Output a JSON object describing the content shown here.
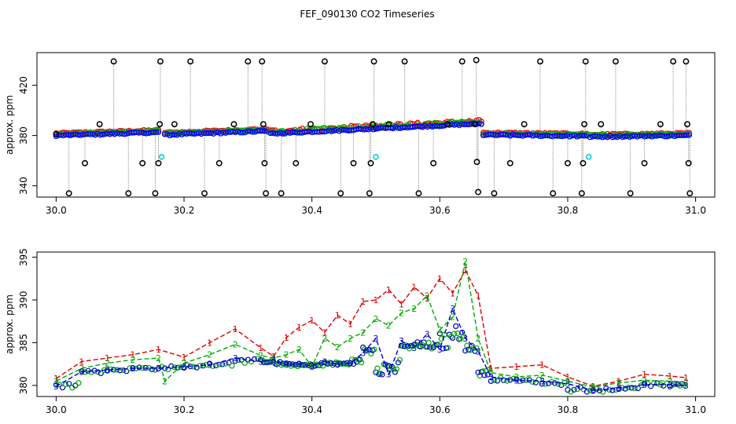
{
  "figure": {
    "title": "FEF_090130  CO2 Timeseries"
  },
  "chart_data": [
    {
      "type": "scatter",
      "panel": "top",
      "ylabel": "approx. ppm",
      "xlabel": "",
      "xlim": [
        29.97,
        31.03
      ],
      "ylim": [
        331,
        446
      ],
      "xticks": [
        30.0,
        30.2,
        30.4,
        30.6,
        30.8,
        31.0
      ],
      "xtick_labels": [
        "30.0",
        "30.2",
        "30.4",
        "30.6",
        "30.8",
        "31.0"
      ],
      "yticks": [
        340,
        380,
        420
      ],
      "ytick_labels": [
        "340",
        "380",
        "420"
      ],
      "colors": {
        "s1": "#ff0000",
        "s2": "#00bb00",
        "s3": "#0000ff",
        "outlier": "#000000",
        "special": "#00cccc",
        "connector": "#aaaaaa"
      },
      "segments": [
        {
          "x0": 30.0,
          "x1": 30.16,
          "y0": 380.5,
          "y1": 383
        },
        {
          "x0": 30.17,
          "x1": 30.33,
          "y0": 381,
          "y1": 384
        },
        {
          "x0": 30.335,
          "x1": 30.5,
          "y0": 382,
          "y1": 386
        },
        {
          "x0": 30.5,
          "x1": 30.665,
          "y0": 386,
          "y1": 390
        },
        {
          "x0": 30.668,
          "x1": 30.83,
          "y0": 381,
          "y1": 380
        },
        {
          "x0": 30.835,
          "x1": 30.99,
          "y0": 379.5,
          "y1": 380.5
        }
      ],
      "outliers": [
        {
          "x": 30.0,
          "y": 381
        },
        {
          "x": 30.02,
          "y": 334
        },
        {
          "x": 30.045,
          "y": 358
        },
        {
          "x": 30.068,
          "y": 389
        },
        {
          "x": 30.09,
          "y": 439
        },
        {
          "x": 30.113,
          "y": 334
        },
        {
          "x": 30.135,
          "y": 358
        },
        {
          "x": 30.155,
          "y": 334
        },
        {
          "x": 30.16,
          "y": 358
        },
        {
          "x": 30.162,
          "y": 389
        },
        {
          "x": 30.163,
          "y": 439
        },
        {
          "x": 30.185,
          "y": 389
        },
        {
          "x": 30.21,
          "y": 439
        },
        {
          "x": 30.232,
          "y": 334
        },
        {
          "x": 30.255,
          "y": 358
        },
        {
          "x": 30.278,
          "y": 389
        },
        {
          "x": 30.3,
          "y": 439
        },
        {
          "x": 30.322,
          "y": 439
        },
        {
          "x": 30.324,
          "y": 389
        },
        {
          "x": 30.326,
          "y": 358
        },
        {
          "x": 30.328,
          "y": 334
        },
        {
          "x": 30.352,
          "y": 334
        },
        {
          "x": 30.375,
          "y": 358
        },
        {
          "x": 30.398,
          "y": 389
        },
        {
          "x": 30.42,
          "y": 439
        },
        {
          "x": 30.445,
          "y": 334
        },
        {
          "x": 30.465,
          "y": 358
        },
        {
          "x": 30.49,
          "y": 334
        },
        {
          "x": 30.492,
          "y": 358
        },
        {
          "x": 30.495,
          "y": 389
        },
        {
          "x": 30.497,
          "y": 439
        },
        {
          "x": 30.52,
          "y": 389
        },
        {
          "x": 30.545,
          "y": 439
        },
        {
          "x": 30.567,
          "y": 334
        },
        {
          "x": 30.59,
          "y": 358
        },
        {
          "x": 30.612,
          "y": 389
        },
        {
          "x": 30.635,
          "y": 439
        },
        {
          "x": 30.655,
          "y": 389
        },
        {
          "x": 30.657,
          "y": 440
        },
        {
          "x": 30.658,
          "y": 359
        },
        {
          "x": 30.66,
          "y": 335
        },
        {
          "x": 30.685,
          "y": 334
        },
        {
          "x": 30.71,
          "y": 358
        },
        {
          "x": 30.732,
          "y": 389
        },
        {
          "x": 30.757,
          "y": 439
        },
        {
          "x": 30.777,
          "y": 334
        },
        {
          "x": 30.8,
          "y": 358
        },
        {
          "x": 30.822,
          "y": 334
        },
        {
          "x": 30.824,
          "y": 358
        },
        {
          "x": 30.826,
          "y": 389
        },
        {
          "x": 30.828,
          "y": 439
        },
        {
          "x": 30.852,
          "y": 389
        },
        {
          "x": 30.875,
          "y": 439
        },
        {
          "x": 30.898,
          "y": 334
        },
        {
          "x": 30.92,
          "y": 358
        },
        {
          "x": 30.945,
          "y": 389
        },
        {
          "x": 30.965,
          "y": 439
        },
        {
          "x": 30.985,
          "y": 439
        },
        {
          "x": 30.987,
          "y": 389
        },
        {
          "x": 30.989,
          "y": 358
        },
        {
          "x": 30.991,
          "y": 334
        }
      ],
      "special_points": [
        {
          "x": 30.165,
          "y": 363
        },
        {
          "x": 30.5,
          "y": 363
        },
        {
          "x": 30.833,
          "y": 363
        }
      ]
    },
    {
      "type": "line",
      "panel": "bottom",
      "ylabel": "approx. ppm",
      "xlabel": "",
      "xlim": [
        29.97,
        31.03
      ],
      "ylim": [
        378.7,
        395.6
      ],
      "xticks": [
        30.0,
        30.2,
        30.4,
        30.6,
        30.8,
        31.0
      ],
      "xtick_labels": [
        "30.0",
        "30.2",
        "30.4",
        "30.6",
        "30.8",
        "31.0"
      ],
      "yticks": [
        380,
        385,
        390,
        395
      ],
      "ytick_labels": [
        "380",
        "385",
        "390",
        "395"
      ],
      "series": [
        {
          "name": "1",
          "marker": "1",
          "color": "#dd0000",
          "x": [
            30.0,
            30.04,
            30.08,
            30.12,
            30.16,
            30.2,
            30.24,
            30.28,
            30.32,
            30.34,
            30.36,
            30.38,
            30.4,
            30.42,
            30.44,
            30.46,
            30.48,
            30.5,
            30.52,
            30.54,
            30.56,
            30.58,
            30.6,
            30.62,
            30.64,
            30.66,
            30.68,
            30.72,
            30.76,
            30.8,
            30.84,
            30.88,
            30.92,
            30.96,
            30.985
          ],
          "y": [
            380.8,
            382.8,
            383.2,
            383.6,
            384.2,
            383.3,
            385,
            386.6,
            384.4,
            383.4,
            385.6,
            386.8,
            387.6,
            386.2,
            388.2,
            387.2,
            389.8,
            390,
            391.2,
            389.5,
            391.5,
            390.2,
            392.5,
            390.8,
            393.5,
            390.5,
            382,
            382.2,
            382.4,
            381,
            379.9,
            380.5,
            381.3,
            381.1,
            380.9
          ]
        },
        {
          "name": "2",
          "marker": "2",
          "color": "#00aa00",
          "x": [
            30.0,
            30.04,
            30.08,
            30.12,
            30.16,
            30.17,
            30.2,
            30.24,
            30.28,
            30.32,
            30.34,
            30.36,
            30.38,
            30.4,
            30.42,
            30.44,
            30.46,
            30.48,
            30.5,
            30.52,
            30.54,
            30.56,
            30.58,
            30.6,
            30.62,
            30.64,
            30.66,
            30.68,
            30.72,
            30.76,
            30.8,
            30.84,
            30.88,
            30.92,
            30.96,
            30.985
          ],
          "y": [
            380.5,
            382,
            382.6,
            383,
            383.2,
            380.5,
            382.6,
            383.6,
            384.8,
            383.5,
            383.2,
            383.6,
            384.2,
            382.2,
            385.5,
            384.5,
            385.5,
            386.2,
            387.8,
            387,
            388.5,
            389,
            390.5,
            386.5,
            388,
            394.5,
            385.5,
            381.5,
            381,
            381.2,
            380.5,
            379.8,
            380.3,
            380.6,
            380.5,
            380.4
          ]
        },
        {
          "name": "3",
          "marker": "3",
          "color": "#0000cc",
          "x": [
            30.0,
            30.04,
            30.08,
            30.12,
            30.16,
            30.2,
            30.24,
            30.28,
            30.32,
            30.34,
            30.36,
            30.38,
            30.4,
            30.42,
            30.44,
            30.46,
            30.48,
            30.5,
            30.52,
            30.54,
            30.56,
            30.58,
            30.6,
            30.62,
            30.64,
            30.66,
            30.68,
            30.72,
            30.76,
            30.8,
            30.84,
            30.88,
            30.92,
            30.96,
            30.985
          ],
          "y": [
            379.9,
            381.6,
            381.8,
            382,
            382,
            382.2,
            382.4,
            383.2,
            382.8,
            383,
            382.4,
            382.5,
            382.3,
            382.8,
            382.5,
            382.6,
            383.8,
            385.5,
            381.3,
            385.2,
            384.4,
            386,
            384.2,
            389,
            385.5,
            384,
            381,
            380.6,
            380.5,
            380.2,
            379.4,
            379.7,
            380.1,
            380.1,
            380
          ]
        }
      ]
    }
  ]
}
